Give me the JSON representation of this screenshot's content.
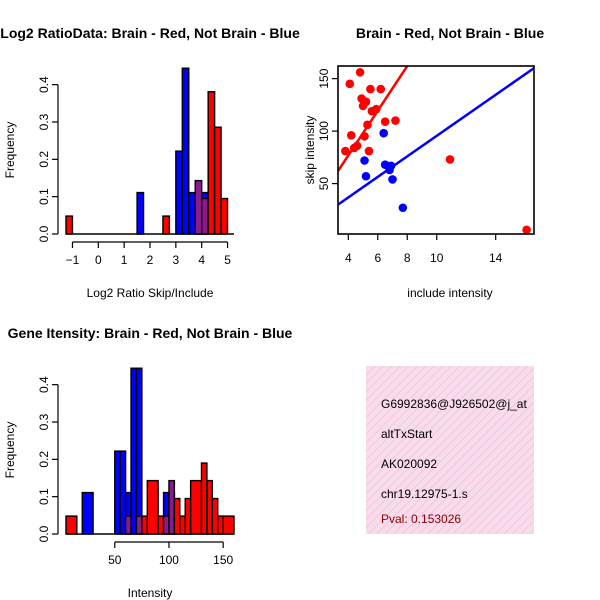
{
  "chart_data": [
    {
      "type": "bar",
      "title": "Log2 RatioData: Brain - Red, Not Brain - Blue",
      "xlabel": "Log2 Ratio Skip/Include",
      "ylabel": "Frequency",
      "xlim": [
        -1.25,
        5.25
      ],
      "ylim": [
        0,
        0.45
      ],
      "xticks": [
        -1,
        0,
        1,
        2,
        3,
        4,
        5
      ],
      "yticks": [
        0.0,
        0.1,
        0.2,
        0.3,
        0.4
      ],
      "series": [
        {
          "name": "Brain",
          "color": "#ff0000",
          "bins": [
            [
              -1.25,
              -1.0,
              0.048
            ],
            [
              2.5,
              2.75,
              0.048
            ],
            [
              3.75,
              4.0,
              0.143
            ],
            [
              4.0,
              4.25,
              0.095
            ],
            [
              4.25,
              4.5,
              0.381
            ],
            [
              4.5,
              4.75,
              0.286
            ],
            [
              4.75,
              5.0,
              0.095
            ]
          ]
        },
        {
          "name": "Not Brain",
          "color": "#0000ff",
          "bins": [
            [
              1.5,
              1.75,
              0.111
            ],
            [
              3.0,
              3.25,
              0.222
            ],
            [
              3.25,
              3.5,
              0.444
            ],
            [
              3.5,
              3.75,
              0.111
            ],
            [
              3.75,
              4.0,
              0.111
            ],
            [
              4.0,
              4.25,
              0.111
            ]
          ]
        }
      ]
    },
    {
      "type": "scatter",
      "title": "Brain - Red, Not Brain - Blue",
      "xlabel": "include intensity",
      "ylabel": "skip intensity",
      "xlim": [
        3.3,
        16.6
      ],
      "ylim": [
        2,
        162
      ],
      "xticks": [
        4,
        6,
        8,
        10,
        14
      ],
      "yticks": [
        50,
        100,
        150
      ],
      "series": [
        {
          "name": "Brain",
          "color": "#ff0000",
          "points": [
            [
              3.8,
              81
            ],
            [
              4.1,
              145
            ],
            [
              4.2,
              96
            ],
            [
              4.4,
              84
            ],
            [
              4.6,
              86
            ],
            [
              4.8,
              156
            ],
            [
              4.9,
              131
            ],
            [
              5.0,
              124
            ],
            [
              5.1,
              95
            ],
            [
              5.2,
              128
            ],
            [
              5.3,
              106
            ],
            [
              5.4,
              81
            ],
            [
              5.5,
              140
            ],
            [
              5.6,
              119
            ],
            [
              5.9,
              121
            ],
            [
              6.2,
              140
            ],
            [
              6.5,
              109
            ],
            [
              7.2,
              110
            ],
            [
              10.9,
              73
            ],
            [
              16.1,
              6
            ]
          ],
          "fit_line": {
            "from": [
              3.3,
              62
            ],
            "to": [
              8.0,
              162
            ]
          }
        },
        {
          "name": "Not Brain",
          "color": "#0000ff",
          "points": [
            [
              5.1,
              72
            ],
            [
              5.2,
              57
            ],
            [
              6.4,
              98
            ],
            [
              6.5,
              68
            ],
            [
              6.8,
              63
            ],
            [
              6.9,
              67
            ],
            [
              7.0,
              54
            ],
            [
              7.7,
              27
            ]
          ],
          "fit_line": {
            "from": [
              3.3,
              30
            ],
            "to": [
              16.6,
              160
            ]
          }
        }
      ]
    },
    {
      "type": "bar",
      "title": "Gene Itensity: Brain - Red, Not Brain - Blue",
      "xlabel": "Intensity",
      "ylabel": "Frequency",
      "xlim": [
        5,
        160
      ],
      "ylim": [
        0,
        0.45
      ],
      "xticks": [
        50,
        100,
        150
      ],
      "yticks": [
        0.0,
        0.1,
        0.2,
        0.3,
        0.4
      ],
      "series": [
        {
          "name": "Brain",
          "color": "#ff0000",
          "bins": [
            [
              5,
              15,
              0.048
            ],
            [
              60,
              65,
              0.048
            ],
            [
              70,
              75,
              0.048
            ],
            [
              75,
              80,
              0.048
            ],
            [
              80,
              90,
              0.143
            ],
            [
              90,
              95,
              0.048
            ],
            [
              95,
              100,
              0.048
            ],
            [
              100,
              105,
              0.143
            ],
            [
              105,
              110,
              0.095
            ],
            [
              110,
              115,
              0.048
            ],
            [
              115,
              120,
              0.095
            ],
            [
              120,
              130,
              0.143
            ],
            [
              130,
              135,
              0.19
            ],
            [
              135,
              140,
              0.143
            ],
            [
              140,
              145,
              0.095
            ],
            [
              145,
              150,
              0.048
            ],
            [
              150,
              160,
              0.048
            ]
          ]
        },
        {
          "name": "Not Brain",
          "color": "#0000ff",
          "bins": [
            [
              20,
              30,
              0.111
            ],
            [
              50,
              55,
              0.222
            ],
            [
              55,
              60,
              0.222
            ],
            [
              60,
              65,
              0.111
            ],
            [
              65,
              70,
              0.444
            ],
            [
              70,
              75,
              0.444
            ],
            [
              95,
              100,
              0.111
            ],
            [
              100,
              105,
              0.111
            ]
          ]
        }
      ]
    }
  ],
  "info_panel": {
    "lines": [
      "G6992836@J926502@j_at",
      "altTxStart",
      "AK020092",
      "chr19.12975-1.s"
    ],
    "pval": "Pval: 0.153026",
    "pval_color": "#8b0000",
    "background": "#f7dcec",
    "hatch_color": "#f0b8d6"
  },
  "overlap_color": "#8b1a8b"
}
